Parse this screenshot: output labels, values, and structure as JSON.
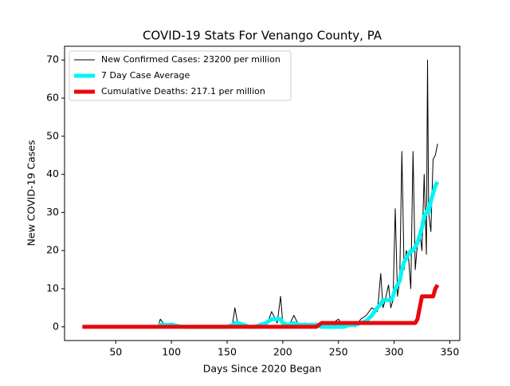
{
  "chart_data": {
    "type": "line",
    "title": "COVID-19 Stats For Venango County, PA",
    "xlabel": "Days Since 2020 Began",
    "ylabel": "New COVID-19 Cases",
    "x": [
      20,
      40,
      60,
      80,
      88,
      90,
      95,
      100,
      110,
      120,
      130,
      140,
      150,
      155,
      157,
      160,
      165,
      170,
      175,
      180,
      185,
      190,
      195,
      198,
      200,
      205,
      210,
      215,
      220,
      225,
      230,
      235,
      240,
      245,
      250,
      255,
      260,
      265,
      270,
      275,
      280,
      285,
      288,
      290,
      292,
      295,
      297,
      299,
      301,
      303,
      305,
      307,
      309,
      311,
      313,
      315,
      317,
      319,
      321,
      323,
      325,
      327,
      329,
      330,
      331,
      333,
      335,
      337,
      339
    ],
    "series": [
      {
        "name": "New Confirmed Cases: 23200 per million",
        "color": "#000000",
        "width": 1,
        "values": [
          0,
          0,
          0,
          0,
          0,
          2,
          0,
          1,
          0,
          0,
          0,
          0,
          0,
          1,
          5,
          0,
          0,
          0,
          0,
          1,
          0,
          4,
          1,
          8,
          1,
          0,
          3,
          0,
          1,
          0,
          1,
          0,
          0,
          1,
          2,
          0,
          1,
          0,
          2,
          3,
          5,
          4,
          14,
          5,
          7,
          11,
          5,
          7,
          31,
          8,
          12,
          46,
          15,
          20,
          18,
          10,
          46,
          15,
          22,
          25,
          20,
          40,
          19,
          70,
          30,
          25,
          44,
          45,
          48
        ]
      },
      {
        "name": "7 Day Case Average",
        "color": "#00f5f5",
        "width": 5,
        "values": [
          null,
          null,
          null,
          null,
          0.5,
          0.5,
          0.5,
          0.5,
          0,
          0,
          0,
          0,
          0,
          0.5,
          1,
          1,
          0.5,
          0,
          0,
          0.5,
          1,
          2,
          2,
          2,
          1,
          0.5,
          1,
          0.5,
          0.5,
          0.5,
          0.5,
          0,
          0,
          0,
          0,
          0,
          0.5,
          0.5,
          1,
          1.5,
          3,
          5,
          6,
          7,
          7,
          7,
          7,
          8,
          10,
          11,
          12,
          15,
          17,
          18,
          19,
          20,
          20,
          21,
          22,
          24,
          26,
          29,
          30,
          31,
          30,
          33,
          35,
          37,
          38
        ]
      },
      {
        "name": "Cumulative Deaths: 217.1 per million",
        "color": "#e8090c",
        "width": 5,
        "values": [
          0,
          0,
          0,
          0,
          0,
          0,
          0,
          0,
          0,
          0,
          0,
          0,
          0,
          0,
          0,
          0,
          0,
          0,
          0,
          0,
          0,
          0,
          0,
          0,
          0,
          0,
          0,
          0,
          0,
          0,
          0,
          1,
          1,
          1,
          1,
          1,
          1,
          1,
          1,
          1,
          1,
          1,
          1,
          1,
          1,
          1,
          1,
          1,
          1,
          1,
          1,
          1,
          1,
          1,
          1,
          1,
          1,
          1,
          2,
          5,
          8,
          8,
          8,
          8,
          8,
          8,
          8,
          10,
          11
        ]
      }
    ],
    "xlim": [
      4,
      359
    ],
    "ylim": [
      -3.6,
      73.6
    ],
    "xticks": [
      50,
      100,
      150,
      200,
      250,
      300,
      350
    ],
    "yticks": [
      0,
      10,
      20,
      30,
      40,
      50,
      60,
      70
    ],
    "legend": "upper left"
  }
}
